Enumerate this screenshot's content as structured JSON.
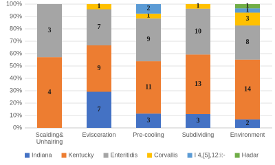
{
  "chart_data": {
    "type": "bar",
    "stacking": "percent",
    "categories": [
      "Scalding& Unhairing",
      "Evisceration",
      "Pre-cooling",
      "Subdividing",
      "Environment"
    ],
    "series": [
      {
        "name": "Indiana",
        "color": "#4472c4",
        "values": [
          null,
          7,
          3,
          3,
          2
        ]
      },
      {
        "name": "Kentucky",
        "color": "#ed7d31",
        "values": [
          4,
          9,
          11,
          13,
          14
        ]
      },
      {
        "name": "Enteritidis",
        "color": "#a5a5a5",
        "values": [
          3,
          7,
          9,
          10,
          8
        ]
      },
      {
        "name": "Corvallis",
        "color": "#ffc000",
        "values": [
          null,
          1,
          1,
          1,
          3
        ]
      },
      {
        "name": "I 4,[5],12:i:-",
        "color": "#5b9bd5",
        "values": [
          null,
          null,
          2,
          null,
          1
        ]
      },
      {
        "name": "Hadar",
        "color": "#70ad47",
        "values": [
          null,
          null,
          null,
          null,
          1
        ]
      }
    ],
    "ylim": [
      0,
      100
    ],
    "yticks": [
      {
        "value": 0,
        "label": "0%"
      },
      {
        "value": 10,
        "label": "10%"
      },
      {
        "value": 20,
        "label": "20%"
      },
      {
        "value": 30,
        "label": "30%"
      },
      {
        "value": 40,
        "label": "40%"
      },
      {
        "value": 50,
        "label": "50%"
      },
      {
        "value": 60,
        "label": "60%"
      },
      {
        "value": 70,
        "label": "70%"
      },
      {
        "value": 80,
        "label": "80%"
      },
      {
        "value": 90,
        "label": "90%"
      },
      {
        "value": 100,
        "label": "100%"
      }
    ],
    "grid": true
  }
}
